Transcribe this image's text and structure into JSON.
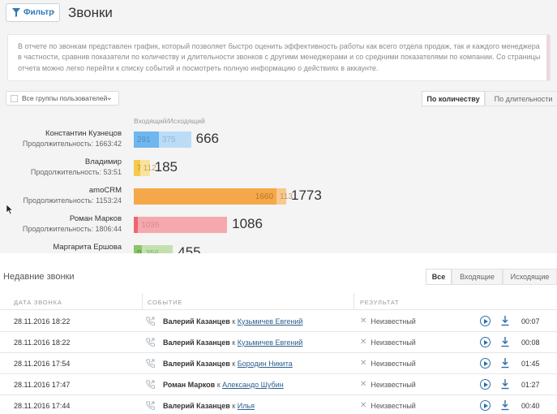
{
  "header": {
    "filter_label": "Фильтр",
    "filter_chevron": "›",
    "title": "Звонки"
  },
  "info_text": "В отчете по звонкам представлен график, который позволяет быстро оценить эффективность работы как всего отдела продаж, так и каждого менеджера в частности, сравнив показатели по количеству и длительности звонков с другими менеджерами и со средними показателями по компании. Со страницы отчета можно легко перейти к списку событий и посмотреть полную информацию о действиях в аккаунте.",
  "group_select": {
    "label": "Все группы пользователей",
    "arrow": "⌄"
  },
  "view_toggle": {
    "by_count": "По количеству",
    "by_duration": "По длительности"
  },
  "column_caption": "Входящий/Исходящий",
  "chart_data": {
    "type": "bar",
    "stacked": true,
    "orientation": "horizontal",
    "x_max": 1773,
    "series_labels": [
      "Входящий",
      "Исходящий"
    ],
    "managers": [
      {
        "name": "Константин Кузнецов",
        "duration": "Продолжительность: 1663:42",
        "incoming": 291,
        "outgoing": 375,
        "total": 666,
        "color_in": "#6fb7ee",
        "color_out": "#bcdcf6",
        "text_in": "#4a8fc5",
        "text_out": "#8fb7dc"
      },
      {
        "name": "Владимир",
        "duration": "Продолжительность: 53:51",
        "incoming": 73,
        "outgoing": 112,
        "total": 185,
        "color_in": "#f6c94e",
        "color_out": "#f9e2a0",
        "text_in": "#b98a10",
        "text_out": "#c9a650"
      },
      {
        "name": "amoCRM",
        "duration": "Продолжительность: 1153:24",
        "incoming": 1660,
        "outgoing": 113,
        "total": 1773,
        "color_in": "#f4a84a",
        "color_out": "#f7c98d",
        "text_in": "#b8762a",
        "text_out": "#c7955a"
      },
      {
        "name": "Роман Марков",
        "duration": "Продолжительность: 1806:44",
        "incoming": 50,
        "outgoing": 1036,
        "total": 1086,
        "color_in": "#ee6770",
        "color_out": "#f5a9ae",
        "text_in": "#b03c44",
        "text_out": "#d98a90"
      },
      {
        "name": "Маргарита Ершова",
        "duration": "",
        "incoming": 99,
        "outgoing": 356,
        "total": 455,
        "color_in": "#8cc46a",
        "color_out": "#c3e1ae",
        "text_in": "#4f8a2c",
        "text_out": "#88b06c"
      }
    ]
  },
  "recent": {
    "title": "Недавние звонки",
    "tabs": {
      "all": "Все",
      "incoming": "Входящие",
      "outgoing": "Исходящие"
    },
    "columns": {
      "date": "ДАТА ЗВОНКА",
      "event": "СОБЫТИЕ",
      "result": "РЕЗУЛЬТАТ"
    },
    "rows": [
      {
        "date": "28.11.2016 18:22",
        "from": "Валерий Казанцев",
        "k": "к",
        "to": "Кузьмичев Евгений",
        "result": "Неизвестный",
        "duration": "00:07"
      },
      {
        "date": "28.11.2016 18:22",
        "from": "Валерий Казанцев",
        "k": "к",
        "to": "Кузьмичев Евгений",
        "result": "Неизвестный",
        "duration": "00:08"
      },
      {
        "date": "28.11.2016 17:54",
        "from": "Валерий Казанцев",
        "k": "к",
        "to": "Бородин Никита",
        "result": "Неизвестный",
        "duration": "01:45"
      },
      {
        "date": "28.11.2016 17:47",
        "from": "Роман Марков",
        "k": "к",
        "to": "Александо Шубин",
        "result": "Неизвестный",
        "duration": "01:27"
      },
      {
        "date": "28.11.2016 17:44",
        "from": "Валерий Казанцев",
        "k": "к",
        "to": "Илья",
        "result": "Неизвестный",
        "duration": "00:40"
      }
    ]
  }
}
